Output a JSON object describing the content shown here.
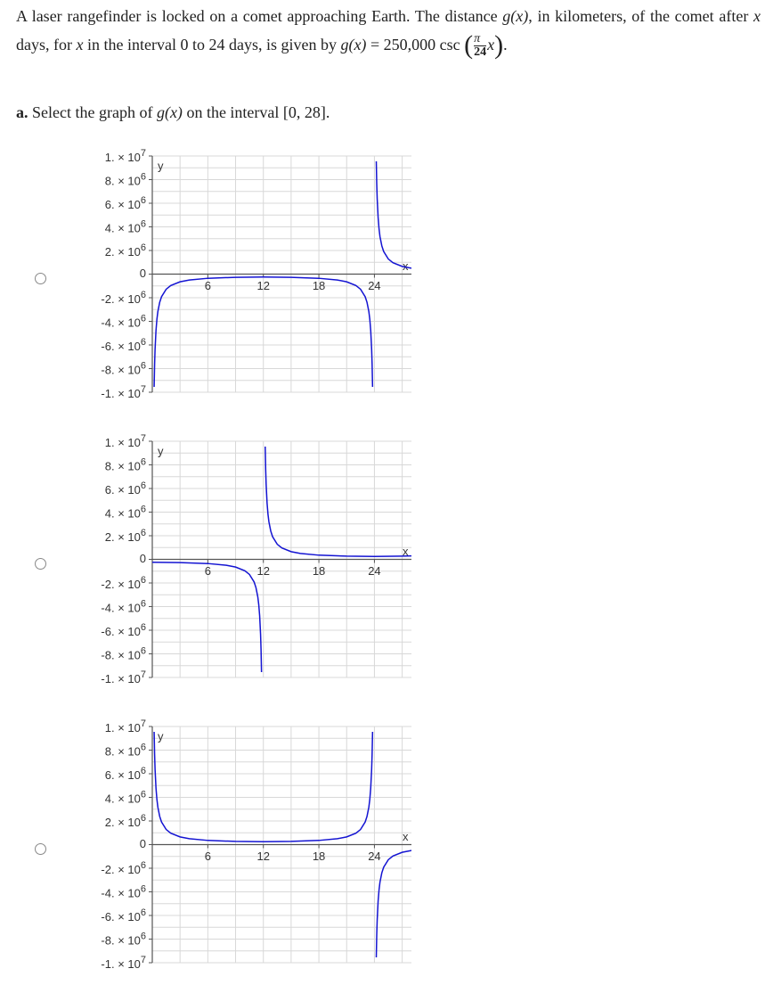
{
  "problem": [
    "A laser rangefinder is locked on a comet approaching Earth. The distance ",
    "g(x)",
    ", in kilometers, of the comet after ",
    "x",
    " days, for ",
    "x",
    " in the interval 0 to 24 days, is given by ",
    "g(x)",
    " = 250,000 csc",
    "(",
    "π",
    "24",
    "x",
    ")",
    "."
  ],
  "part_a": [
    "a.",
    " Select the graph of ",
    "g(x)",
    " on the interval ",
    "[0, 28]",
    "."
  ],
  "options": [
    {
      "graph": {
        "type": "line",
        "xlabel": "x",
        "ylabel": "y",
        "color": "#1414d2",
        "xlim": [
          0,
          28
        ],
        "ylim": [
          -10000000,
          10000000
        ],
        "xticks": [
          6,
          12,
          18,
          24
        ],
        "yticks": [
          {
            "value": 10000000,
            "label": "1. × 10",
            "exponent": "7"
          },
          {
            "value": 8000000,
            "label": "8. × 10",
            "exponent": "6"
          },
          {
            "value": 6000000,
            "label": "6. × 10",
            "exponent": "6"
          },
          {
            "value": 4000000,
            "label": "4. × 10",
            "exponent": "6"
          },
          {
            "value": 2000000,
            "label": "2. × 10",
            "exponent": "6"
          },
          0,
          {
            "value": -2000000,
            "label": "-2. × 10",
            "exponent": "6"
          },
          {
            "value": -4000000,
            "label": "-4. × 10",
            "exponent": "6"
          },
          {
            "value": -6000000,
            "label": "-6. × 10",
            "exponent": "6"
          },
          {
            "value": -8000000,
            "label": "-8. × 10",
            "exponent": "6"
          },
          {
            "value": -10000000,
            "label": "-1. × 10",
            "exponent": "7"
          }
        ],
        "xgrid": [
          3,
          6,
          9,
          12,
          15,
          18,
          21,
          24,
          27
        ],
        "ygrid": [
          -10000000,
          -9000000,
          -8000000,
          -7000000,
          -6000000,
          -5000000,
          -4000000,
          -3000000,
          -2000000,
          -1000000,
          0,
          1000000,
          2000000,
          3000000,
          4000000,
          5000000,
          6000000,
          7000000,
          8000000,
          9000000,
          10000000
        ],
        "x": [
          0.2,
          0.25,
          0.3,
          0.4,
          0.5,
          0.6,
          0.8,
          1,
          1.5,
          2,
          3,
          4,
          6,
          9,
          12,
          15,
          18,
          20,
          21,
          22,
          22.5,
          23,
          23.2,
          23.4,
          23.5,
          23.6,
          23.7,
          23.75,
          23.8,
          null,
          24.2,
          24.25,
          24.3,
          24.4,
          24.5,
          24.6,
          24.8,
          25,
          25.5,
          26,
          27,
          28
        ],
        "y": [
          -9550000,
          -7640000,
          -6370000,
          -4780000,
          -3820000,
          -3180000,
          -2390000,
          -1915000,
          -1280000,
          -966000,
          -653000,
          -500000,
          -354000,
          -271000,
          -250000,
          -271000,
          -354000,
          -500000,
          -653000,
          -966000,
          -1280000,
          -1915000,
          -2390000,
          -3180000,
          -3820000,
          -4780000,
          -6370000,
          -7640000,
          -9550000,
          null,
          9550000,
          7640000,
          6370000,
          4780000,
          3820000,
          3180000,
          2390000,
          1915000,
          1280000,
          966000,
          653000,
          500000
        ]
      }
    },
    {
      "graph": {
        "type": "line",
        "xlabel": "x",
        "ylabel": "y",
        "color": "#1414d2",
        "xlim": [
          0,
          28
        ],
        "ylim": [
          -10000000,
          10000000
        ],
        "xticks": [
          6,
          12,
          18,
          24
        ],
        "yticks": [
          {
            "value": 10000000,
            "label": "1. × 10",
            "exponent": "7"
          },
          {
            "value": 8000000,
            "label": "8. × 10",
            "exponent": "6"
          },
          {
            "value": 6000000,
            "label": "6. × 10",
            "exponent": "6"
          },
          {
            "value": 4000000,
            "label": "4. × 10",
            "exponent": "6"
          },
          {
            "value": 2000000,
            "label": "2. × 10",
            "exponent": "6"
          },
          0,
          {
            "value": -2000000,
            "label": "-2. × 10",
            "exponent": "6"
          },
          {
            "value": -4000000,
            "label": "-4. × 10",
            "exponent": "6"
          },
          {
            "value": -6000000,
            "label": "-6. × 10",
            "exponent": "6"
          },
          {
            "value": -8000000,
            "label": "-8. × 10",
            "exponent": "6"
          },
          {
            "value": -10000000,
            "label": "-1. × 10",
            "exponent": "7"
          }
        ],
        "xgrid": [
          3,
          6,
          9,
          12,
          15,
          18,
          21,
          24,
          27
        ],
        "ygrid": [
          -10000000,
          -9000000,
          -8000000,
          -7000000,
          -6000000,
          -5000000,
          -4000000,
          -3000000,
          -2000000,
          -1000000,
          0,
          1000000,
          2000000,
          3000000,
          4000000,
          5000000,
          6000000,
          7000000,
          8000000,
          9000000,
          10000000
        ],
        "x": [
          0,
          3,
          6,
          8,
          9,
          10,
          10.5,
          11,
          11.2,
          11.4,
          11.5,
          11.6,
          11.7,
          11.75,
          11.8,
          null,
          12.2,
          12.25,
          12.3,
          12.4,
          12.5,
          12.6,
          12.8,
          13,
          13.5,
          14,
          15,
          16,
          18,
          21,
          24,
          27,
          28
        ],
        "y": [
          -250000,
          -271000,
          -354000,
          -500000,
          -653000,
          -966000,
          -1280000,
          -1915000,
          -2390000,
          -3180000,
          -3820000,
          -4780000,
          -6370000,
          -7640000,
          -9550000,
          null,
          9550000,
          7640000,
          6370000,
          4780000,
          3820000,
          3180000,
          2390000,
          1915000,
          1280000,
          966000,
          653000,
          500000,
          354000,
          271000,
          250000,
          271000,
          289000
        ]
      }
    },
    {
      "graph": {
        "type": "line",
        "xlabel": "x",
        "ylabel": "y",
        "color": "#1414d2",
        "xlim": [
          0,
          28
        ],
        "ylim": [
          -10000000,
          10000000
        ],
        "xticks": [
          6,
          12,
          18,
          24
        ],
        "yticks": [
          {
            "value": 10000000,
            "label": "1. × 10",
            "exponent": "7"
          },
          {
            "value": 8000000,
            "label": "8. × 10",
            "exponent": "6"
          },
          {
            "value": 6000000,
            "label": "6. × 10",
            "exponent": "6"
          },
          {
            "value": 4000000,
            "label": "4. × 10",
            "exponent": "6"
          },
          {
            "value": 2000000,
            "label": "2. × 10",
            "exponent": "6"
          },
          0,
          {
            "value": -2000000,
            "label": "-2. × 10",
            "exponent": "6"
          },
          {
            "value": -4000000,
            "label": "-4. × 10",
            "exponent": "6"
          },
          {
            "value": -6000000,
            "label": "-6. × 10",
            "exponent": "6"
          },
          {
            "value": -8000000,
            "label": "-8. × 10",
            "exponent": "6"
          },
          {
            "value": -10000000,
            "label": "-1. × 10",
            "exponent": "7"
          }
        ],
        "xgrid": [
          3,
          6,
          9,
          12,
          15,
          18,
          21,
          24,
          27
        ],
        "ygrid": [
          -10000000,
          -9000000,
          -8000000,
          -7000000,
          -6000000,
          -5000000,
          -4000000,
          -3000000,
          -2000000,
          -1000000,
          0,
          1000000,
          2000000,
          3000000,
          4000000,
          5000000,
          6000000,
          7000000,
          8000000,
          9000000,
          10000000
        ],
        "x": [
          0.2,
          0.25,
          0.3,
          0.4,
          0.5,
          0.6,
          0.8,
          1,
          1.5,
          2,
          3,
          4,
          6,
          9,
          12,
          15,
          18,
          20,
          21,
          22,
          22.5,
          23,
          23.2,
          23.4,
          23.5,
          23.6,
          23.7,
          23.75,
          23.8,
          null,
          24.2,
          24.25,
          24.3,
          24.4,
          24.5,
          24.6,
          24.8,
          25,
          25.5,
          26,
          27,
          28
        ],
        "y": [
          9550000,
          7640000,
          6370000,
          4780000,
          3820000,
          3180000,
          2390000,
          1915000,
          1280000,
          966000,
          653000,
          500000,
          354000,
          271000,
          250000,
          271000,
          354000,
          500000,
          653000,
          966000,
          1280000,
          1915000,
          2390000,
          3180000,
          3820000,
          4780000,
          6370000,
          7640000,
          9550000,
          null,
          -9550000,
          -7640000,
          -6370000,
          -4780000,
          -3820000,
          -3180000,
          -2390000,
          -1915000,
          -1280000,
          -966000,
          -653000,
          -500000
        ]
      }
    }
  ]
}
